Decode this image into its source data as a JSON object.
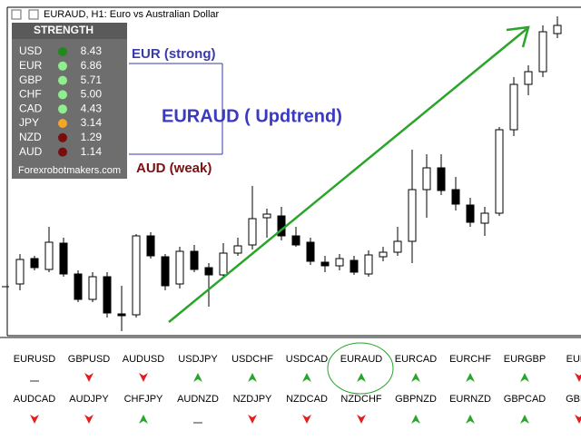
{
  "window_title": "EURAUD, H1:  Euro vs Australian Dollar",
  "strength_panel": {
    "title": "STRENGTH",
    "rows": [
      {
        "currency": "USD",
        "color": "#1e8a1e",
        "value": "8.43"
      },
      {
        "currency": "EUR",
        "color": "#90ee90",
        "value": "6.86"
      },
      {
        "currency": "GBP",
        "color": "#90ee90",
        "value": "5.71"
      },
      {
        "currency": "CHF",
        "color": "#90ee90",
        "value": "5.00"
      },
      {
        "currency": "CAD",
        "color": "#90ee90",
        "value": "4.43"
      },
      {
        "currency": "JPY",
        "color": "#f5a623",
        "value": "3.14"
      },
      {
        "currency": "NZD",
        "color": "#7a0c0c",
        "value": "1.29"
      },
      {
        "currency": "AUD",
        "color": "#7a0c0c",
        "value": "1.14"
      }
    ],
    "footer": "Forexrobotmakers.com"
  },
  "annotations": {
    "strong": "EUR (strong)",
    "trend": "EURAUD ( Updtrend)",
    "weak": "AUD (weak)"
  },
  "pairs": [
    [
      {
        "symbol": "EURUSD",
        "signal": "neutral"
      },
      {
        "symbol": "GBPUSD",
        "signal": "down"
      },
      {
        "symbol": "AUDUSD",
        "signal": "down"
      },
      {
        "symbol": "USDJPY",
        "signal": "up"
      },
      {
        "symbol": "USDCHF",
        "signal": "up"
      },
      {
        "symbol": "USDCAD",
        "signal": "up"
      },
      {
        "symbol": "EURAUD",
        "signal": "up"
      },
      {
        "symbol": "EURCAD",
        "signal": "up"
      },
      {
        "symbol": "EURCHF",
        "signal": "up"
      },
      {
        "symbol": "EURGBP",
        "signal": "up"
      },
      {
        "symbol": "EURJ",
        "signal": "down"
      }
    ],
    [
      {
        "symbol": "AUDCAD",
        "signal": "down"
      },
      {
        "symbol": "AUDJPY",
        "signal": "down"
      },
      {
        "symbol": "CHFJPY",
        "signal": "up"
      },
      {
        "symbol": "AUDNZD",
        "signal": "neutral"
      },
      {
        "symbol": "NZDJPY",
        "signal": "down"
      },
      {
        "symbol": "NZDCAD",
        "signal": "down"
      },
      {
        "symbol": "NZDCHF",
        "signal": "down"
      },
      {
        "symbol": "GBPNZD",
        "signal": "up"
      },
      {
        "symbol": "EURNZD",
        "signal": "up"
      },
      {
        "symbol": "GBPCAD",
        "signal": "up"
      },
      {
        "symbol": "GBPA",
        "signal": "down"
      }
    ]
  ]
}
